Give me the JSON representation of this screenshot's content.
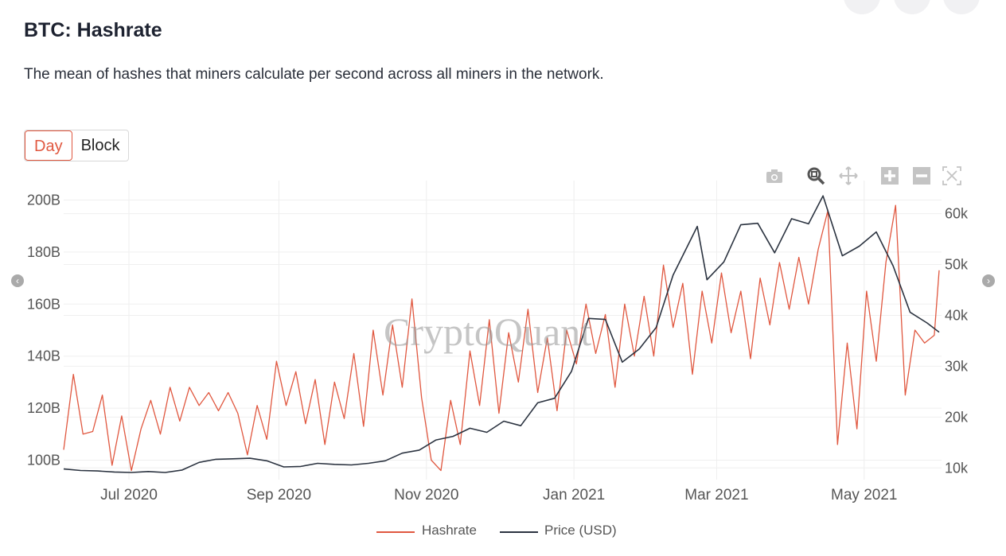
{
  "header": {
    "title": "BTC: Hashrate",
    "description": "The mean of hashes that miners calculate per second across all miners in the network."
  },
  "toggle": {
    "options": [
      "Day",
      "Block"
    ],
    "selected": "Day"
  },
  "toolbar": {
    "icons": [
      "camera-icon",
      "zoom-icon",
      "pan-icon",
      "zoom-in-icon",
      "zoom-out-icon",
      "autoscale-icon"
    ],
    "active": "zoom-icon"
  },
  "watermark": "CryptoQuant",
  "colors": {
    "hashrate": "#e0573f",
    "price": "#2b3340",
    "accent": "#e0573f"
  },
  "chart_data": {
    "type": "line",
    "title": "",
    "xlabel": "",
    "ylabel": "",
    "grid": true,
    "legend_position": "bottom",
    "x_range": [
      "2020-06-04",
      "2021-06-02"
    ],
    "x_ticks": [
      {
        "date": "2020-07-01",
        "label": "Jul 2020"
      },
      {
        "date": "2020-09-01",
        "label": "Sep 2020"
      },
      {
        "date": "2020-11-01",
        "label": "Nov 2020"
      },
      {
        "date": "2021-01-01",
        "label": "Jan 2021"
      },
      {
        "date": "2021-03-01",
        "label": "Mar 2021"
      },
      {
        "date": "2021-05-01",
        "label": "May 2021"
      }
    ],
    "y_left": {
      "range": [
        92.5,
        207.5
      ],
      "ticks": [
        100,
        120,
        140,
        160,
        180,
        200
      ],
      "tick_labels": [
        "100B",
        "120B",
        "140B",
        "160B",
        "180B",
        "200B"
      ]
    },
    "y_right": {
      "range": [
        7.7,
        66.5
      ],
      "ticks": [
        10,
        20,
        30,
        40,
        50,
        60
      ],
      "tick_labels": [
        "10k",
        "20k",
        "30k",
        "40k",
        "50k",
        "60k"
      ]
    },
    "series": [
      {
        "name": "Hashrate",
        "axis": "left",
        "unit": "B",
        "x": [
          "2020-06-04",
          "2020-06-08",
          "2020-06-12",
          "2020-06-16",
          "2020-06-20",
          "2020-06-24",
          "2020-06-28",
          "2020-07-02",
          "2020-07-06",
          "2020-07-10",
          "2020-07-14",
          "2020-07-18",
          "2020-07-22",
          "2020-07-26",
          "2020-07-30",
          "2020-08-03",
          "2020-08-07",
          "2020-08-11",
          "2020-08-15",
          "2020-08-19",
          "2020-08-23",
          "2020-08-27",
          "2020-08-31",
          "2020-09-04",
          "2020-09-08",
          "2020-09-12",
          "2020-09-16",
          "2020-09-20",
          "2020-09-24",
          "2020-09-28",
          "2020-10-02",
          "2020-10-06",
          "2020-10-10",
          "2020-10-14",
          "2020-10-18",
          "2020-10-22",
          "2020-10-26",
          "2020-10-30",
          "2020-11-03",
          "2020-11-07",
          "2020-11-11",
          "2020-11-15",
          "2020-11-19",
          "2020-11-23",
          "2020-11-27",
          "2020-12-01",
          "2020-12-05",
          "2020-12-09",
          "2020-12-13",
          "2020-12-17",
          "2020-12-21",
          "2020-12-25",
          "2020-12-29",
          "2021-01-02",
          "2021-01-06",
          "2021-01-10",
          "2021-01-14",
          "2021-01-18",
          "2021-01-22",
          "2021-01-26",
          "2021-01-30",
          "2021-02-03",
          "2021-02-07",
          "2021-02-11",
          "2021-02-15",
          "2021-02-19",
          "2021-02-23",
          "2021-02-27",
          "2021-03-03",
          "2021-03-07",
          "2021-03-11",
          "2021-03-15",
          "2021-03-19",
          "2021-03-23",
          "2021-03-27",
          "2021-03-31",
          "2021-04-04",
          "2021-04-08",
          "2021-04-12",
          "2021-04-16",
          "2021-04-20",
          "2021-04-24",
          "2021-04-28",
          "2021-05-02",
          "2021-05-06",
          "2021-05-10",
          "2021-05-14",
          "2021-05-18",
          "2021-05-22",
          "2021-05-26",
          "2021-05-30",
          "2021-06-01"
        ],
        "y": [
          104,
          133,
          110,
          111,
          125,
          98,
          117,
          96,
          112,
          123,
          110,
          128,
          115,
          128,
          121,
          126,
          119,
          126,
          118,
          102,
          121,
          108,
          138,
          121,
          134,
          114,
          131,
          106,
          130,
          116,
          141,
          113,
          150,
          125,
          152,
          128,
          162,
          124,
          100,
          96,
          123,
          106,
          142,
          121,
          154,
          118,
          149,
          130,
          158,
          126,
          147,
          119,
          150,
          137,
          160,
          141,
          156,
          128,
          160,
          140,
          163,
          140,
          175,
          151,
          168,
          133,
          165,
          145,
          172,
          149,
          165,
          139,
          170,
          152,
          176,
          158,
          178,
          160,
          181,
          196,
          106,
          145,
          112,
          165,
          138,
          176,
          198,
          125,
          150,
          145,
          148,
          173
        ]
      },
      {
        "name": "Price (USD)",
        "axis": "right",
        "unit": "k",
        "x": [
          "2020-06-04",
          "2020-06-11",
          "2020-06-18",
          "2020-06-25",
          "2020-07-02",
          "2020-07-09",
          "2020-07-16",
          "2020-07-23",
          "2020-07-30",
          "2020-08-06",
          "2020-08-13",
          "2020-08-20",
          "2020-08-27",
          "2020-09-03",
          "2020-09-10",
          "2020-09-17",
          "2020-09-24",
          "2020-10-01",
          "2020-10-08",
          "2020-10-15",
          "2020-10-22",
          "2020-10-29",
          "2020-11-05",
          "2020-11-12",
          "2020-11-19",
          "2020-11-26",
          "2020-12-03",
          "2020-12-10",
          "2020-12-17",
          "2020-12-24",
          "2020-12-31",
          "2021-01-07",
          "2021-01-14",
          "2021-01-21",
          "2021-01-28",
          "2021-02-04",
          "2021-02-11",
          "2021-02-21",
          "2021-02-25",
          "2021-03-04",
          "2021-03-11",
          "2021-03-18",
          "2021-03-25",
          "2021-04-01",
          "2021-04-08",
          "2021-04-14",
          "2021-04-22",
          "2021-04-29",
          "2021-05-06",
          "2021-05-13",
          "2021-05-20",
          "2021-05-27",
          "2021-06-01"
        ],
        "y": [
          9.8,
          9.5,
          9.4,
          9.2,
          9.1,
          9.3,
          9.1,
          9.6,
          11.1,
          11.7,
          11.8,
          11.9,
          11.4,
          10.2,
          10.3,
          10.9,
          10.7,
          10.6,
          10.9,
          11.4,
          12.9,
          13.5,
          15.5,
          16.2,
          17.8,
          17.0,
          19.2,
          18.3,
          22.8,
          23.7,
          29.0,
          39.4,
          39.2,
          30.8,
          33.4,
          37.6,
          47.9,
          57.5,
          47.0,
          50.5,
          57.8,
          58.1,
          52.3,
          59.0,
          58.0,
          63.5,
          51.7,
          53.6,
          56.4,
          49.7,
          40.6,
          38.5,
          36.7
        ]
      }
    ]
  }
}
